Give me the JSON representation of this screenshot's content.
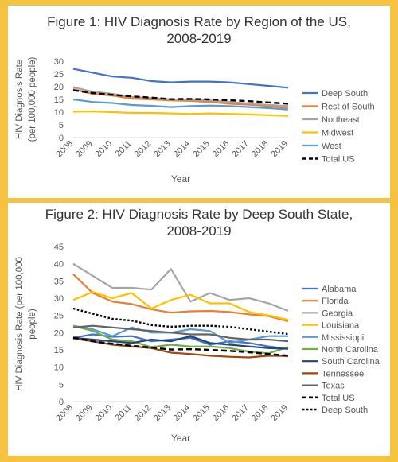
{
  "chart_data": [
    {
      "type": "line",
      "title_line1": "Figure 1: HIV Diagnosis Rate by Region of the US,",
      "title_line2": "2008-2019",
      "xlabel": "Year",
      "ylabel_line1": "HIV Diagnosis Rate",
      "ylabel_line2": "(per 100,000 people)",
      "ylim": [
        0,
        30
      ],
      "ytick_step": 5,
      "grid": false,
      "legend_position": "right",
      "x": [
        "2008",
        "2009",
        "2010",
        "2011",
        "2012",
        "2013",
        "2014",
        "2015",
        "2016",
        "2017",
        "2018",
        "2019"
      ],
      "series": [
        {
          "name": "Deep South",
          "color": "#4472c4",
          "dash": "solid",
          "values": [
            27,
            25.5,
            24,
            23.5,
            22.2,
            21.7,
            22,
            22,
            21.7,
            21,
            20.3,
            19.6
          ]
        },
        {
          "name": "Rest of South",
          "color": "#ed7d31",
          "dash": "solid",
          "values": [
            19,
            17.2,
            16.5,
            15.3,
            15,
            14.6,
            14.4,
            14,
            13.3,
            12.9,
            12.4,
            11.6
          ]
        },
        {
          "name": "Northeast",
          "color": "#a5a5a5",
          "dash": "solid",
          "values": [
            19.8,
            18,
            17.2,
            16,
            15.5,
            15,
            14.8,
            14.6,
            14,
            13.4,
            12.8,
            12.4
          ]
        },
        {
          "name": "Midwest",
          "color": "#ffc000",
          "dash": "solid",
          "values": [
            10.2,
            10.3,
            10,
            9.7,
            9.7,
            9.5,
            9.3,
            9.5,
            9.3,
            9.1,
            8.8,
            8.5
          ]
        },
        {
          "name": "West",
          "color": "#5b9bd5",
          "dash": "solid",
          "values": [
            15,
            14,
            13.6,
            12.8,
            12.5,
            12,
            12.4,
            12.6,
            12.4,
            12,
            11.6,
            11
          ]
        },
        {
          "name": "Total US",
          "color": "#000000",
          "dash": "dashed",
          "values": [
            18.6,
            17.5,
            16.8,
            16.2,
            15.7,
            15.1,
            15.2,
            15,
            14.7,
            14.3,
            13.8,
            13.3
          ]
        }
      ]
    },
    {
      "type": "line",
      "title_line1": "Figure 2: HIV Diagnosis Rate by Deep South State,",
      "title_line2": "2008-2019",
      "xlabel": "Year",
      "ylabel_line1": "HIV Diagnosis Rate (per 100,000",
      "ylabel_line2": "people)",
      "ylim": [
        0,
        45
      ],
      "ytick_step": 5,
      "grid": false,
      "legend_position": "right",
      "x": [
        "2008",
        "2009",
        "2010",
        "2011",
        "2012",
        "2013",
        "2014",
        "2015",
        "2016",
        "2017",
        "2018",
        "2019"
      ],
      "series": [
        {
          "name": "Alabama",
          "color": "#4472c4",
          "dash": "solid",
          "values": [
            18.5,
            19.5,
            18.8,
            19,
            17.5,
            18,
            18.5,
            16.5,
            17.5,
            17,
            16,
            15.3
          ]
        },
        {
          "name": "Florida",
          "color": "#ed7d31",
          "dash": "solid",
          "values": [
            37,
            31.5,
            29,
            28.3,
            26.8,
            25.8,
            26.2,
            26.3,
            26,
            25.3,
            24.8,
            23.3
          ]
        },
        {
          "name": "Georgia",
          "color": "#a5a5a5",
          "dash": "solid",
          "values": [
            40,
            36.5,
            33,
            33,
            32.5,
            38.5,
            29,
            31.5,
            29.5,
            30,
            28.5,
            26.3
          ]
        },
        {
          "name": "Louisiana",
          "color": "#ffc000",
          "dash": "solid",
          "values": [
            29.5,
            31.8,
            30,
            31.5,
            27,
            29.5,
            31,
            28.5,
            28.5,
            26,
            25,
            23.7
          ]
        },
        {
          "name": "Mississippi",
          "color": "#5b9bd5",
          "dash": "solid",
          "values": [
            22,
            21,
            19,
            21.5,
            20,
            20,
            21,
            20.5,
            17,
            18,
            19,
            19
          ]
        },
        {
          "name": "North Carolina",
          "color": "#70ad47",
          "dash": "solid",
          "values": [
            22,
            20.5,
            18,
            17.5,
            15.8,
            16.5,
            16,
            16,
            15.5,
            14.5,
            14,
            15.8
          ]
        },
        {
          "name": "South Carolina",
          "color": "#264478",
          "dash": "solid",
          "values": [
            18.5,
            18,
            17.5,
            17,
            18,
            17.5,
            19,
            17,
            16.5,
            16,
            15.5,
            15.3
          ]
        },
        {
          "name": "Tennessee",
          "color": "#9e480e",
          "dash": "solid",
          "values": [
            18.3,
            17.5,
            16.5,
            16,
            15.5,
            14.2,
            13.8,
            13.3,
            13,
            12.8,
            13.3,
            13.2
          ]
        },
        {
          "name": "Texas",
          "color": "#636363",
          "dash": "solid",
          "values": [
            21.5,
            22,
            21.5,
            21,
            20.5,
            20,
            19.5,
            19.5,
            18.5,
            18,
            18,
            17.5
          ]
        },
        {
          "name": "Total US",
          "color": "#000000",
          "dash": "dashed",
          "values": [
            18.6,
            17.5,
            16.8,
            16.2,
            15.7,
            15.1,
            15.2,
            15,
            14.7,
            14.3,
            13.8,
            13.3
          ]
        },
        {
          "name": "Deep South",
          "color": "#000000",
          "dash": "dotted",
          "values": [
            27,
            25.5,
            24,
            23.5,
            22.2,
            21.7,
            22,
            22,
            21.7,
            21,
            20.3,
            19.6
          ]
        }
      ]
    }
  ]
}
